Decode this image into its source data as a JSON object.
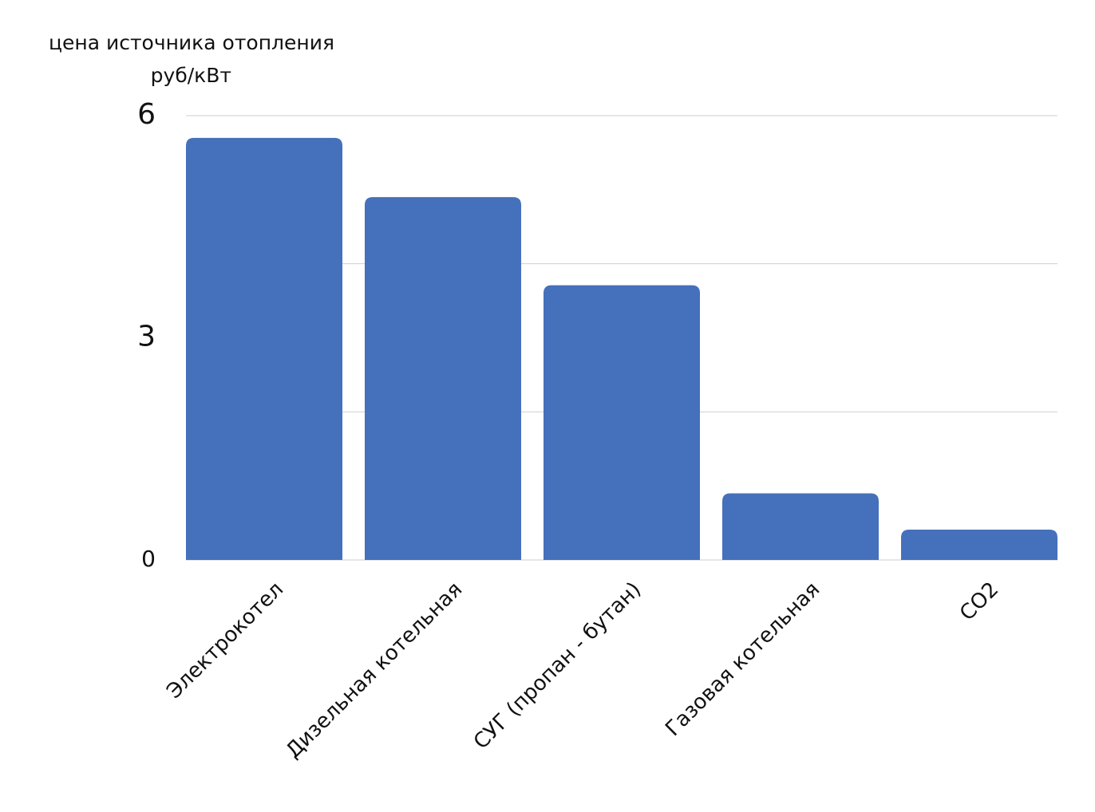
{
  "chart_data": {
    "type": "bar",
    "title": "цена источника отопления",
    "subtitle": "руб/кВт",
    "categories": [
      "Электрокотел",
      "Дизельная котельная",
      "СУГ (пропан - бутан)",
      "Газовая котельная",
      "CO2"
    ],
    "values": [
      5.7,
      4.9,
      3.71,
      0.9,
      0.41
    ],
    "color": "#4570bb",
    "ylim": [
      0,
      6
    ],
    "yticks": [
      0,
      3,
      6
    ],
    "grid": true,
    "gridlines": [
      2,
      4,
      6
    ]
  }
}
